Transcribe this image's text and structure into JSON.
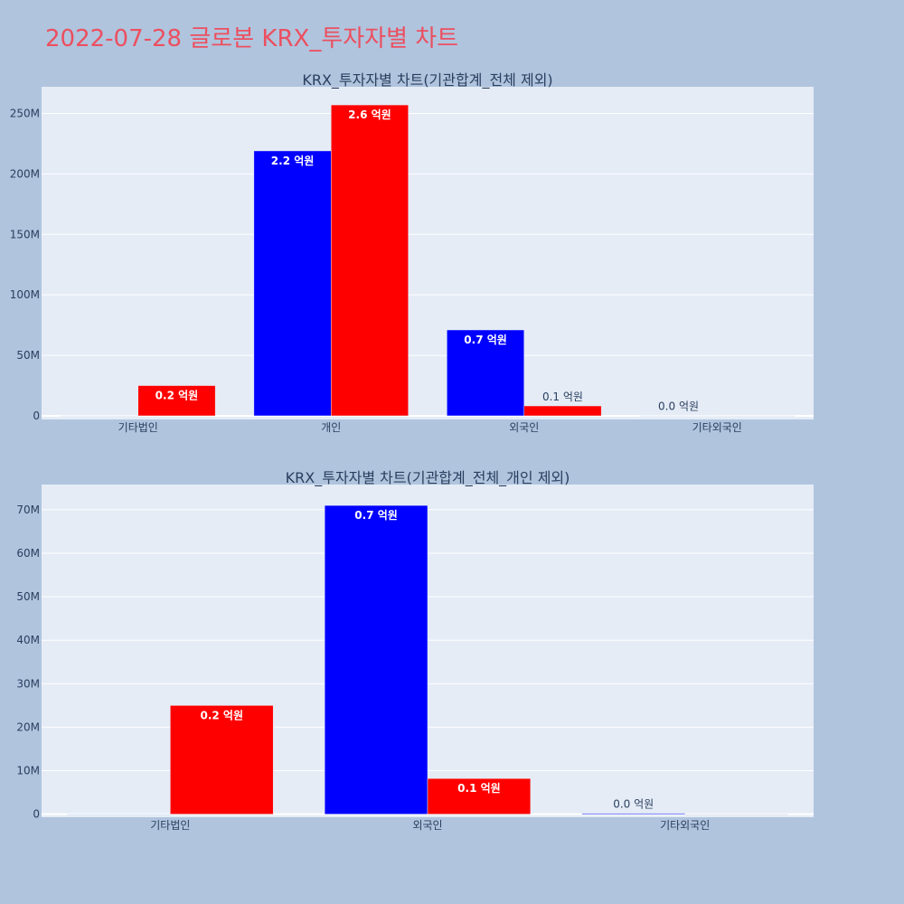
{
  "page": {
    "title": "2022-07-28 글로본 KRX_투자자별 차트"
  },
  "colors": {
    "background": "#b0c4de",
    "plot_bg": "#e5ecf6",
    "title": "#ec4f5f",
    "buy": "#0000ff",
    "sell": "#ff0000",
    "text": "#2a3f5f"
  },
  "chart_data": [
    {
      "type": "bar",
      "title": "KRX_투자자별 차트(기관합계_전체 제외)",
      "categories": [
        "기타법인",
        "개인",
        "외국인",
        "기타외국인"
      ],
      "yticks": [
        0,
        50000000,
        100000000,
        150000000,
        200000000,
        250000000
      ],
      "ytick_labels": [
        "0",
        "50M",
        "100M",
        "150M",
        "200M",
        "250M"
      ],
      "ylim": [
        -3000000,
        272000000
      ],
      "grid": true,
      "series": [
        {
          "color": "#0000ff",
          "values": [
            0,
            219000000,
            71000000,
            200000
          ],
          "labels": [
            "",
            "2.2 억원",
            "0.7 억원",
            "0.0 억원"
          ]
        },
        {
          "color": "#ff0000",
          "values": [
            25000000,
            257000000,
            8200000,
            0
          ],
          "labels": [
            "0.2 억원",
            "2.6 억원",
            "0.1 억원",
            ""
          ]
        }
      ]
    },
    {
      "type": "bar",
      "title": "KRX_투자자별 차트(기관합계_전체_개인 제외)",
      "categories": [
        "기타법인",
        "외국인",
        "기타외국인"
      ],
      "yticks": [
        0,
        10000000,
        20000000,
        30000000,
        40000000,
        50000000,
        60000000,
        70000000
      ],
      "ytick_labels": [
        "0",
        "10M",
        "20M",
        "30M",
        "40M",
        "50M",
        "60M",
        "70M"
      ],
      "ylim": [
        -700000,
        75800000
      ],
      "grid": true,
      "series": [
        {
          "color": "#0000ff",
          "values": [
            0,
            71000000,
            200000
          ],
          "labels": [
            "",
            "0.7 억원",
            "0.0 억원"
          ]
        },
        {
          "color": "#ff0000",
          "values": [
            25000000,
            8200000,
            0
          ],
          "labels": [
            "0.2 억원",
            "0.1 억원",
            ""
          ]
        }
      ]
    }
  ]
}
